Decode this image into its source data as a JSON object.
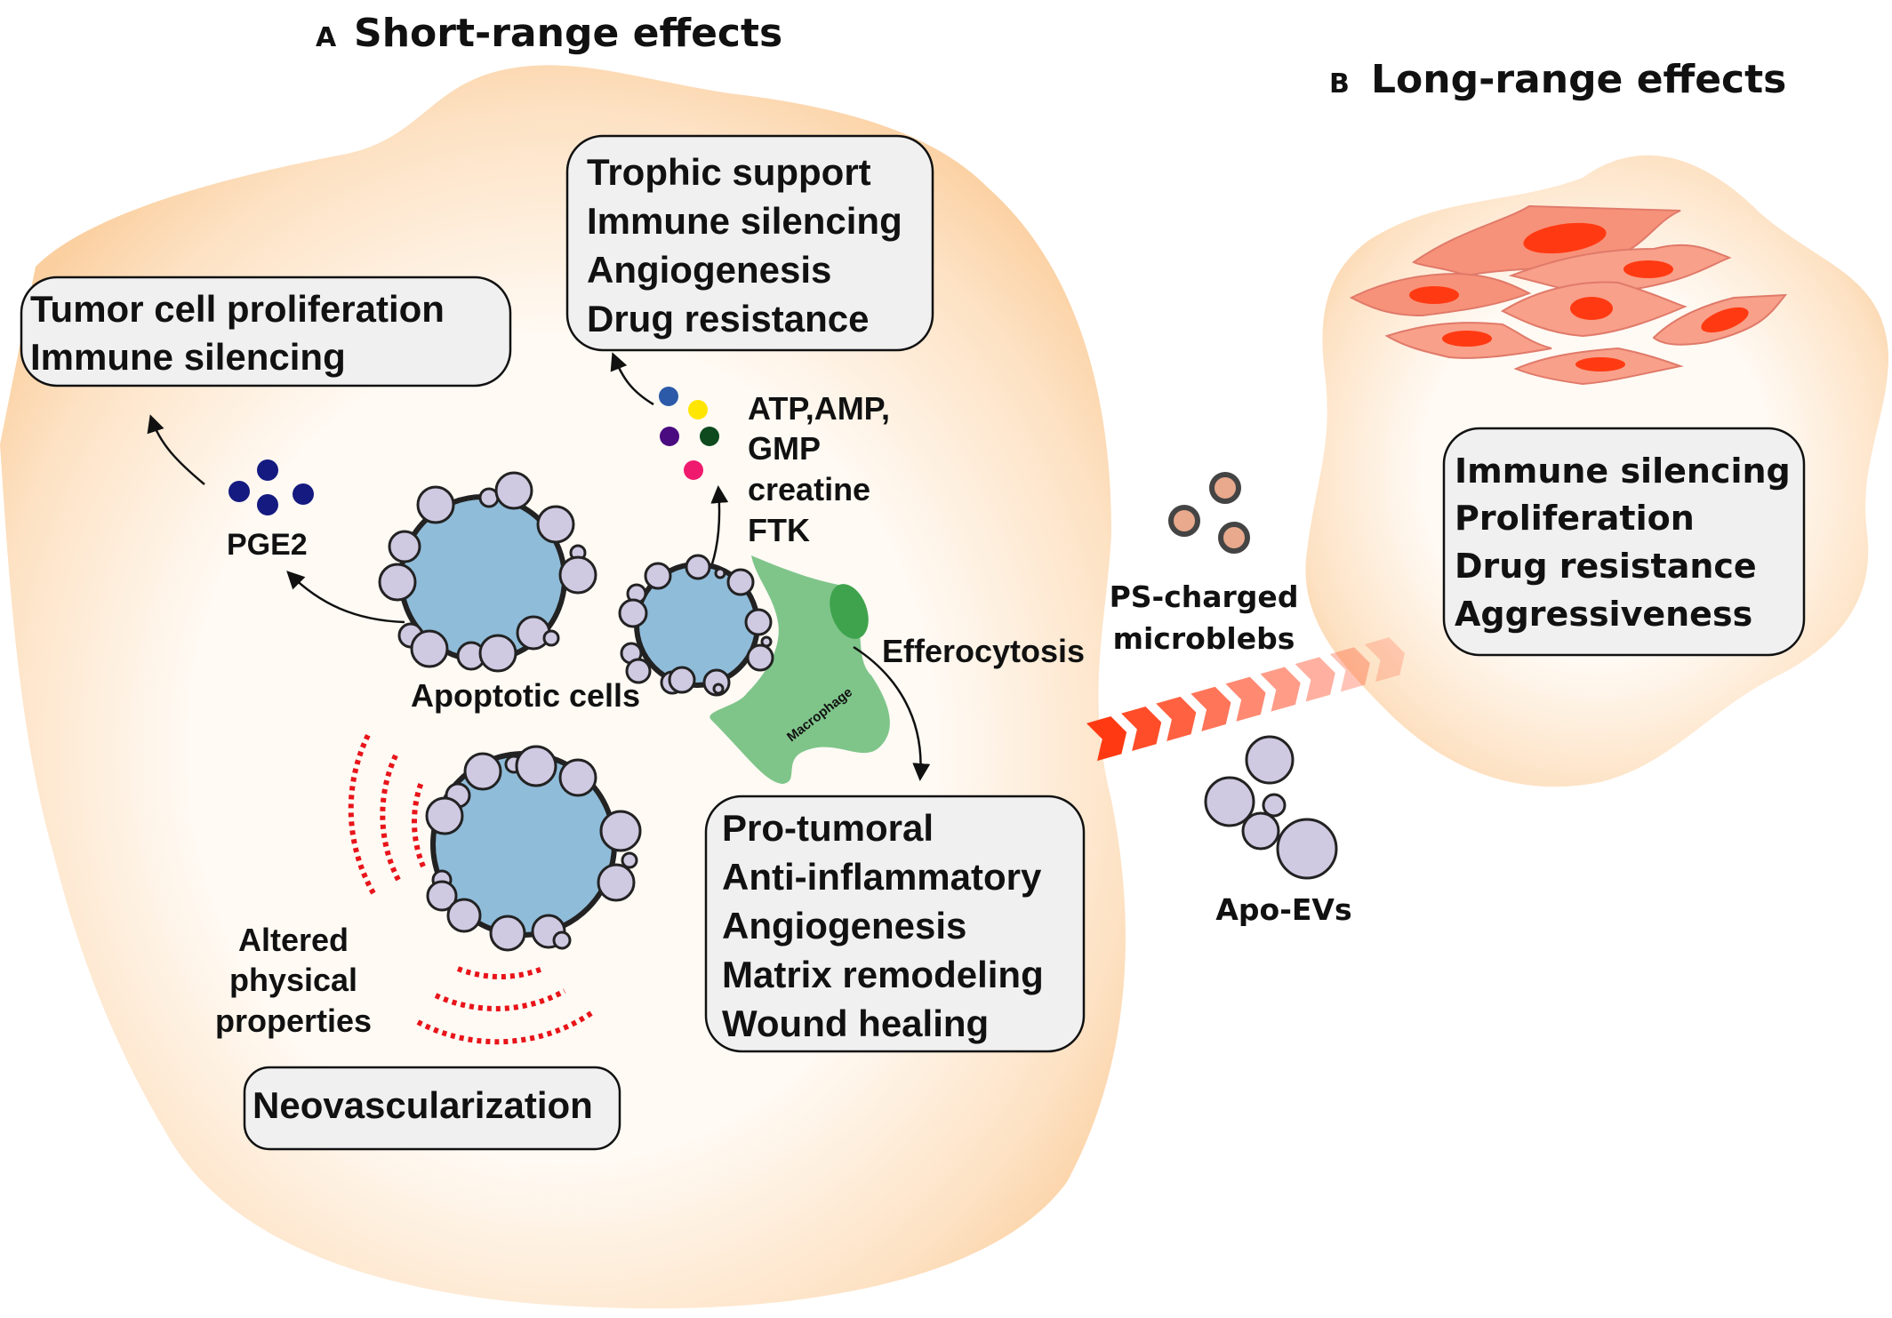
{
  "panel_a": {
    "letter": "A",
    "title": "Short-range effects",
    "box_tumor": [
      "Tumor cell proliferation",
      "Immune silencing"
    ],
    "box_trophic": [
      "Trophic support",
      "Immune silencing",
      "Angiogenesis",
      "Drug resistance"
    ],
    "pge2_label": "PGE2",
    "metabolites": [
      "ATP,AMP,",
      "GMP",
      "creatine",
      "FTK"
    ],
    "apoptotic_label": "Apoptotic cells",
    "macrophage_label": "Macrophage",
    "efferocytosis_label": "Efferocytosis",
    "box_macrophage": [
      "Pro-tumoral",
      "Anti-inflammatory",
      "Angiogenesis",
      "Matrix remodeling",
      "Wound healing"
    ],
    "altered_label": [
      "Altered",
      "physical",
      "properties"
    ],
    "box_neo": "Neovascularization"
  },
  "panel_b": {
    "letter": "B",
    "title": "Long-range effects",
    "microblebs_label": [
      "PS-charged",
      "microblebs"
    ],
    "apo_evs_label": "Apo-EVs",
    "box_effects": [
      "Immune silencing",
      "Proliferation",
      "Drug resistance",
      "Aggressiveness"
    ]
  },
  "colors": {
    "tissue": "#fbd3a8",
    "apoptotic_cell": "#8fbcd9",
    "bleb": "#cfc9e2",
    "macrophage": "#7fc58a",
    "tumor_cell": "#f79d85",
    "nucleus": "#ff3a12",
    "arrow": "#ff3a12",
    "pge2": "#141a80",
    "metabolite_dots": [
      "#2c5aa8",
      "#ffe600",
      "#4a0a80",
      "#0f4a1e",
      "#ef1a6e"
    ]
  }
}
